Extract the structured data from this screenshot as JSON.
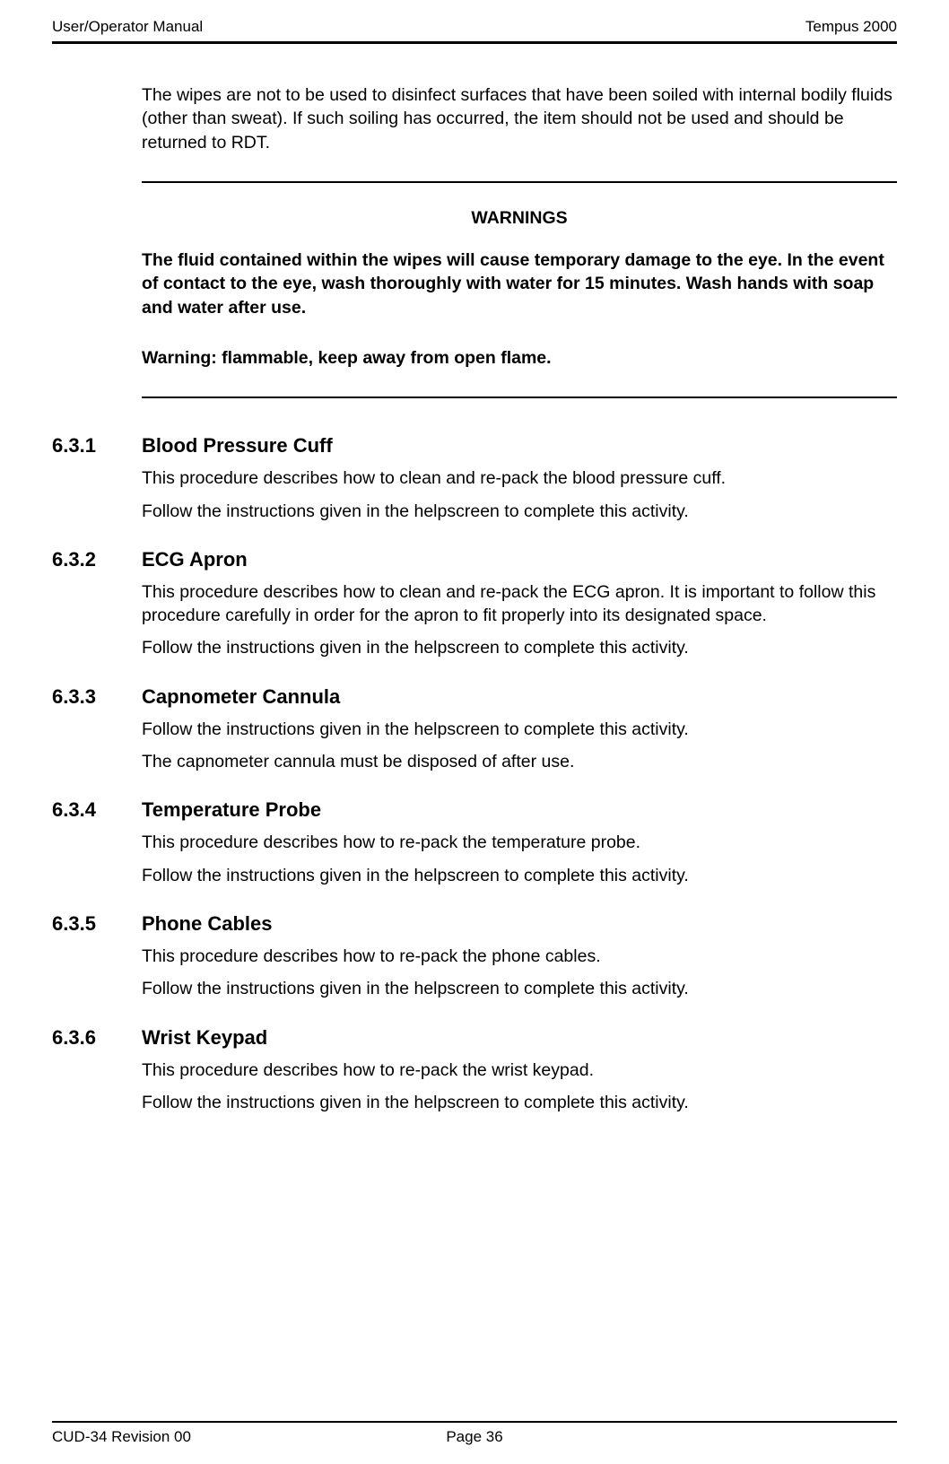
{
  "header": {
    "left": "User/Operator Manual",
    "right": "Tempus 2000"
  },
  "intro_para": "The wipes are not to be used to disinfect surfaces that have been soiled with internal bodily fluids (other than sweat).  If such soiling has occurred, the item should not be used and should be returned to RDT.",
  "warnings": {
    "title": "WARNINGS",
    "p1": "The fluid contained within the wipes will cause temporary damage to the eye. In the event of contact to the eye, wash thoroughly with water for 15 minutes. Wash hands with soap and water after use.",
    "p2": "Warning: flammable, keep away from open flame."
  },
  "sections": {
    "s1": {
      "num": "6.3.1",
      "title": "Blood Pressure Cuff",
      "p1": "This procedure describes how to clean and re-pack the blood pressure cuff.",
      "p2": "Follow the instructions given in the helpscreen to complete this activity."
    },
    "s2": {
      "num": "6.3.2",
      "title": "ECG Apron",
      "p1": "This procedure describes how to clean and re-pack the ECG apron.  It is important to follow this procedure carefully in order for the apron to fit properly into its designated space.",
      "p2": "Follow the instructions given in the helpscreen to complete this activity."
    },
    "s3": {
      "num": "6.3.3",
      "title": "Capnometer Cannula",
      "p1": "Follow the instructions given in the helpscreen to complete this activity.",
      "p2": "The capnometer cannula must be disposed of after use."
    },
    "s4": {
      "num": "6.3.4",
      "title": "Temperature Probe",
      "p1": "This procedure describes how to re-pack the temperature probe.",
      "p2": "Follow the instructions given in the helpscreen to complete this activity."
    },
    "s5": {
      "num": "6.3.5",
      "title": "Phone Cables",
      "p1": "This procedure describes how to re-pack the phone cables.",
      "p2": "Follow the instructions given in the helpscreen to complete this activity."
    },
    "s6": {
      "num": "6.3.6",
      "title": "Wrist Keypad",
      "p1": "This procedure describes how to re-pack the wrist keypad.",
      "p2": "Follow the instructions given in the helpscreen to complete this activity."
    }
  },
  "footer": {
    "left": "CUD-34 Revision 00",
    "center": "Page 36"
  }
}
